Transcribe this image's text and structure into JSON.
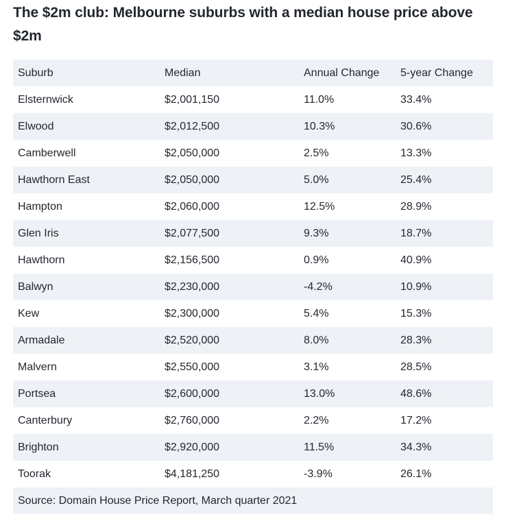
{
  "title": "The $2m club: Melbourne suburbs with a median house price above $2m",
  "table": {
    "headers": [
      "Suburb",
      "Median",
      "Annual Change",
      "5-year Change"
    ],
    "rows": [
      [
        "Elsternwick",
        "$2,001,150",
        "11.0%",
        "33.4%"
      ],
      [
        "Elwood",
        "$2,012,500",
        "10.3%",
        "30.6%"
      ],
      [
        "Camberwell",
        "$2,050,000",
        "2.5%",
        "13.3%"
      ],
      [
        "Hawthorn East",
        "$2,050,000",
        "5.0%",
        "25.4%"
      ],
      [
        "Hampton",
        "$2,060,000",
        "12.5%",
        "28.9%"
      ],
      [
        "Glen Iris",
        "$2,077,500",
        "9.3%",
        "18.7%"
      ],
      [
        "Hawthorn",
        "$2,156,500",
        "0.9%",
        "40.9%"
      ],
      [
        "Balwyn",
        "$2,230,000",
        "-4.2%",
        "10.9%"
      ],
      [
        "Kew",
        "$2,300,000",
        "5.4%",
        "15.3%"
      ],
      [
        "Armadale",
        "$2,520,000",
        "8.0%",
        "28.3%"
      ],
      [
        "Malvern",
        "$2,550,000",
        "3.1%",
        "28.5%"
      ],
      [
        "Portsea",
        "$2,600,000",
        "13.0%",
        "48.6%"
      ],
      [
        "Canterbury",
        "$2,760,000",
        "2.2%",
        "17.2%"
      ],
      [
        "Brighton",
        "$2,920,000",
        "11.5%",
        "34.3%"
      ],
      [
        "Toorak",
        "$4,181,250",
        "-3.9%",
        "26.1%"
      ]
    ],
    "source": "Source: Domain House Price Report, March quarter 2021"
  },
  "colors": {
    "stripe": "#eef2f6",
    "text": "#23272e"
  }
}
